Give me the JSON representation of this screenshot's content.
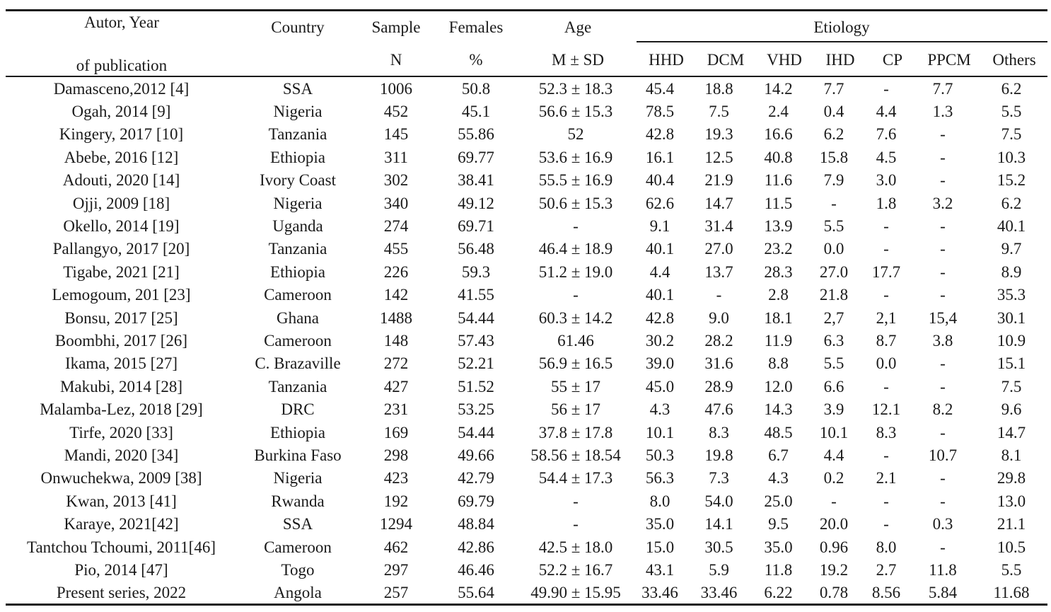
{
  "header": {
    "author_line1": "Autor, Year",
    "author_line2": "of publication",
    "country": "Country",
    "sample": "Sample",
    "sample_unit": "N",
    "females": "Females",
    "females_unit": "%",
    "age": "Age",
    "age_unit": "M ± SD",
    "etiology": "Etiology",
    "etiology_columns": [
      "HHD",
      "DCM",
      "VHD",
      "IHD",
      "CP",
      "PPCM",
      "Others"
    ]
  },
  "rows": [
    [
      "Damasceno,2012 [4]",
      "SSA",
      "1006",
      "50.8",
      "52.3 ± 18.3",
      "45.4",
      "18.8",
      "14.2",
      "7.7",
      "-",
      "7.7",
      "6.2"
    ],
    [
      "Ogah, 2014 [9]",
      "Nigeria",
      "452",
      "45.1",
      "56.6 ± 15.3",
      "78.5",
      "7.5",
      "2.4",
      "0.4",
      "4.4",
      "1.3",
      "5.5"
    ],
    [
      "Kingery, 2017 [10]",
      "Tanzania",
      "145",
      "55.86",
      "52",
      "42.8",
      "19.3",
      "16.6",
      "6.2",
      "7.6",
      "-",
      "7.5"
    ],
    [
      "Abebe, 2016 [12]",
      "Ethiopia",
      "311",
      "69.77",
      "53.6 ± 16.9",
      "16.1",
      "12.5",
      "40.8",
      "15.8",
      "4.5",
      "-",
      "10.3"
    ],
    [
      "Adouti, 2020 [14]",
      "Ivory Coast",
      "302",
      "38.41",
      "55.5 ± 16.9",
      "40.4",
      "21.9",
      "11.6",
      "7.9",
      "3.0",
      "-",
      "15.2"
    ],
    [
      "Ojji, 2009 [18]",
      "Nigeria",
      "340",
      "49.12",
      "50.6 ± 15.3",
      "62.6",
      "14.7",
      "11.5",
      "-",
      "1.8",
      "3.2",
      "6.2"
    ],
    [
      "Okello, 2014 [19]",
      "Uganda",
      "274",
      "69.71",
      "-",
      "9.1",
      "31.4",
      "13.9",
      "5.5",
      "-",
      "-",
      "40.1"
    ],
    [
      "Pallangyo, 2017 [20]",
      "Tanzania",
      "455",
      "56.48",
      "46.4 ± 18.9",
      "40.1",
      "27.0",
      "23.2",
      "0.0",
      "-",
      "-",
      "9.7"
    ],
    [
      "Tigabe, 2021 [21]",
      "Ethiopia",
      "226",
      "59.3",
      "51.2 ± 19.0",
      "4.4",
      "13.7",
      "28.3",
      "27.0",
      "17.7",
      "-",
      "8.9"
    ],
    [
      "Lemogoum, 201 [23]",
      "Cameroon",
      "142",
      "41.55",
      "-",
      "40.1",
      "-",
      "2.8",
      "21.8",
      "-",
      "-",
      "35.3"
    ],
    [
      "Bonsu, 2017 [25]",
      "Ghana",
      "1488",
      "54.44",
      "60.3 ± 14.2",
      "42.8",
      "9.0",
      "18.1",
      "2,7",
      "2,1",
      "15,4",
      "30.1"
    ],
    [
      "Boombhi, 2017 [26]",
      "Cameroon",
      "148",
      "57.43",
      "61.46",
      "30.2",
      "28.2",
      "11.9",
      "6.3",
      "8.7",
      "3.8",
      "10.9"
    ],
    [
      "Ikama, 2015 [27]",
      "C. Brazaville",
      "272",
      "52.21",
      "56.9 ± 16.5",
      "39.0",
      "31.6",
      "8.8",
      "5.5",
      "0.0",
      "-",
      "15.1"
    ],
    [
      "Makubi, 2014 [28]",
      "Tanzania",
      "427",
      "51.52",
      "55 ± 17",
      "45.0",
      "28.9",
      "12.0",
      "6.6",
      "-",
      "-",
      "7.5"
    ],
    [
      "Malamba-Lez, 2018  [29]",
      "DRC",
      "231",
      "53.25",
      "56 ± 17",
      "4.3",
      "47.6",
      "14.3",
      "3.9",
      "12.1",
      "8.2",
      "9.6"
    ],
    [
      "Tirfe, 2020 [33]",
      "Ethiopia",
      "169",
      "54.44",
      "37.8 ± 17.8",
      "10.1",
      "8.3",
      "48.5",
      "10.1",
      "8.3",
      "-",
      "14.7"
    ],
    [
      "Mandi, 2020 [34]",
      "Burkina Faso",
      "298",
      "49.66",
      "58.56 ± 18.54",
      "50.3",
      "19.8",
      "6.7",
      "4.4",
      "-",
      "10.7",
      "8.1"
    ],
    [
      "Onwuchekwa, 2009 [38]",
      "Nigeria",
      "423",
      "42.79",
      "54.4 ± 17.3",
      "56.3",
      "7.3",
      "4.3",
      "0.2",
      "2.1",
      "-",
      "29.8"
    ],
    [
      "Kwan, 2013 [41]",
      "Rwanda",
      "192",
      "69.79",
      "-",
      "8.0",
      "54.0",
      "25.0",
      "-",
      "-",
      "-",
      "13.0"
    ],
    [
      "Karaye, 2021[42]",
      "SSA",
      "1294",
      "48.84",
      "-",
      "35.0",
      "14.1",
      "9.5",
      "20.0",
      "-",
      "0.3",
      "21.1"
    ],
    [
      "Tantchou Tchoumi, 2011[46]",
      "Cameroon",
      "462",
      "42.86",
      "42.5 ± 18.0",
      "15.0",
      "30.5",
      "35.0",
      "0.96",
      "8.0",
      "-",
      "10.5"
    ],
    [
      "Pio, 2014 [47]",
      "Togo",
      "297",
      "46.46",
      "52.2 ± 16.7",
      "43.1",
      "5.9",
      "11.8",
      "19.2",
      "2.7",
      "11.8",
      "5.5"
    ],
    [
      "Present series, 2022",
      "Angola",
      "257",
      "55.64",
      "49.90 ± 15.95",
      "33.46",
      "33.46",
      "6.22",
      "0.78",
      "8.56",
      "5.84",
      "11.68"
    ]
  ]
}
